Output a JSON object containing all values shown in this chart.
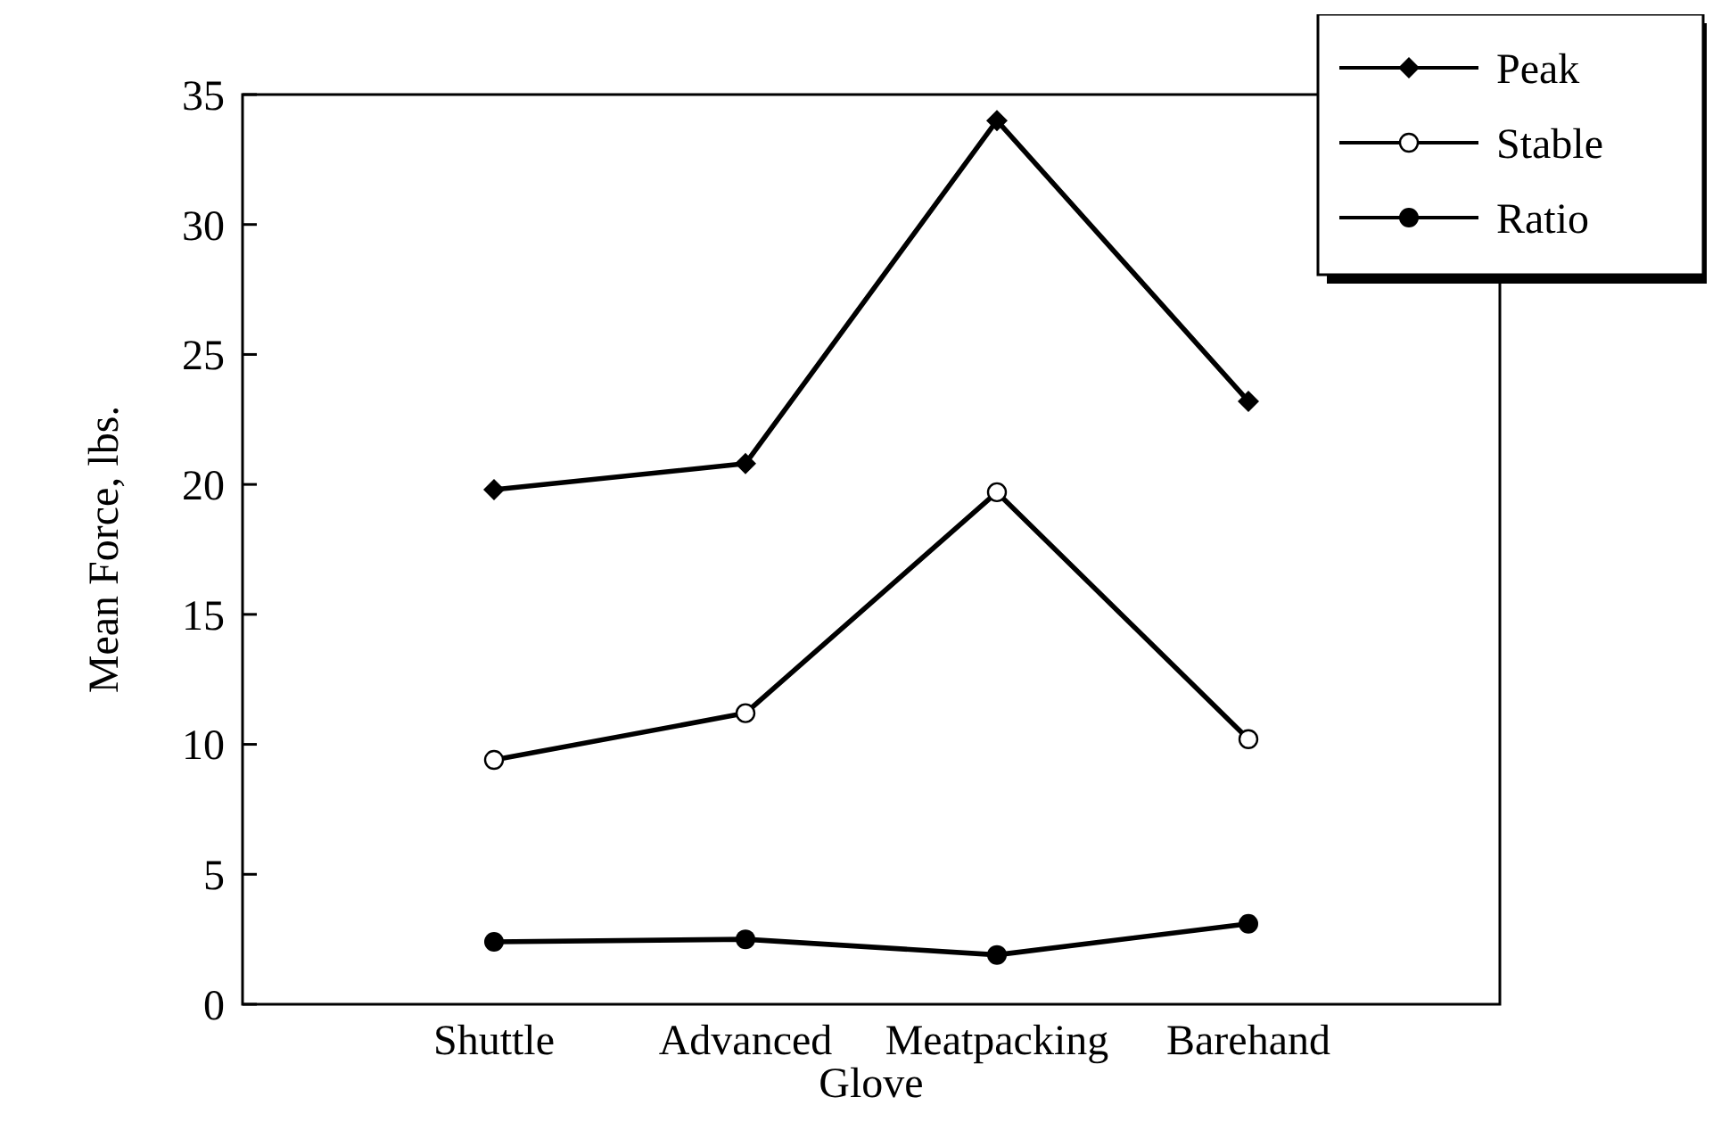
{
  "chart_data": {
    "type": "line",
    "xlabel": "Glove",
    "ylabel": "Mean Force, lbs.",
    "categories": [
      "Shuttle",
      "Advanced",
      "Meatpacking",
      "Barehand"
    ],
    "series": [
      {
        "name": "Peak",
        "color": "#000000",
        "marker": "diamond",
        "values": [
          19.8,
          20.8,
          34.0,
          23.2
        ]
      },
      {
        "name": "Stable",
        "color": "#000000",
        "marker": "open-circle",
        "values": [
          9.4,
          11.2,
          19.7,
          10.2
        ]
      },
      {
        "name": "Ratio",
        "color": "#000000",
        "marker": "circle",
        "values": [
          2.4,
          2.5,
          1.9,
          3.1
        ]
      }
    ],
    "ylim": [
      0,
      35
    ],
    "yticks": [
      0,
      5,
      10,
      15,
      20,
      25,
      30,
      35
    ],
    "grid": false,
    "legend": "top right",
    "line_style": "solid"
  }
}
